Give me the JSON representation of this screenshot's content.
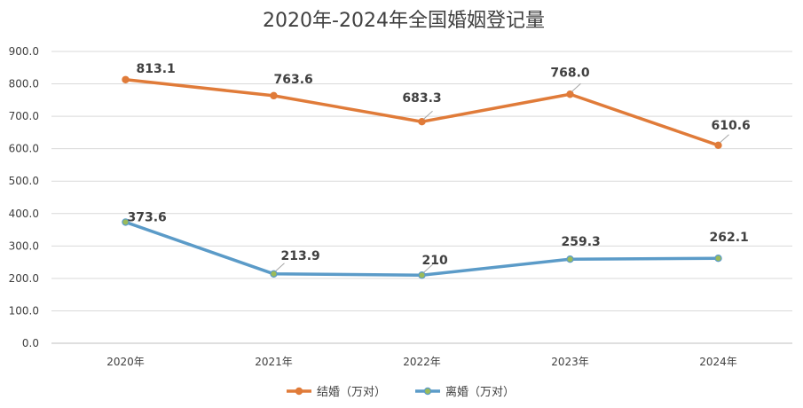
{
  "chart_data": {
    "type": "line",
    "title": "2020年-2024年全国婚姻登记量",
    "categories": [
      "2020年",
      "2021年",
      "2022年",
      "2023年",
      "2024年"
    ],
    "ylim": [
      0,
      900
    ],
    "ytick_labels": [
      "0.0",
      "100.0",
      "200.0",
      "300.0",
      "400.0",
      "500.0",
      "600.0",
      "700.0",
      "800.0",
      "900.0"
    ],
    "grid": true,
    "legend_position": "bottom",
    "series": [
      {
        "name": "结婚（万对）",
        "values": [
          813.1,
          763.6,
          683.3,
          768.0,
          610.6
        ],
        "labels": [
          "813.1",
          "763.6",
          "683.3",
          "768.0",
          "610.6"
        ],
        "color": "#E07B39",
        "marker_color": "#E07B39"
      },
      {
        "name": "离婚（万对）",
        "values": [
          373.6,
          213.9,
          210,
          259.3,
          262.1
        ],
        "labels": [
          "373.6",
          "213.9",
          "210",
          "259.3",
          "262.1"
        ],
        "color": "#5B9BC8",
        "marker_color": "#9BBB59"
      }
    ]
  }
}
